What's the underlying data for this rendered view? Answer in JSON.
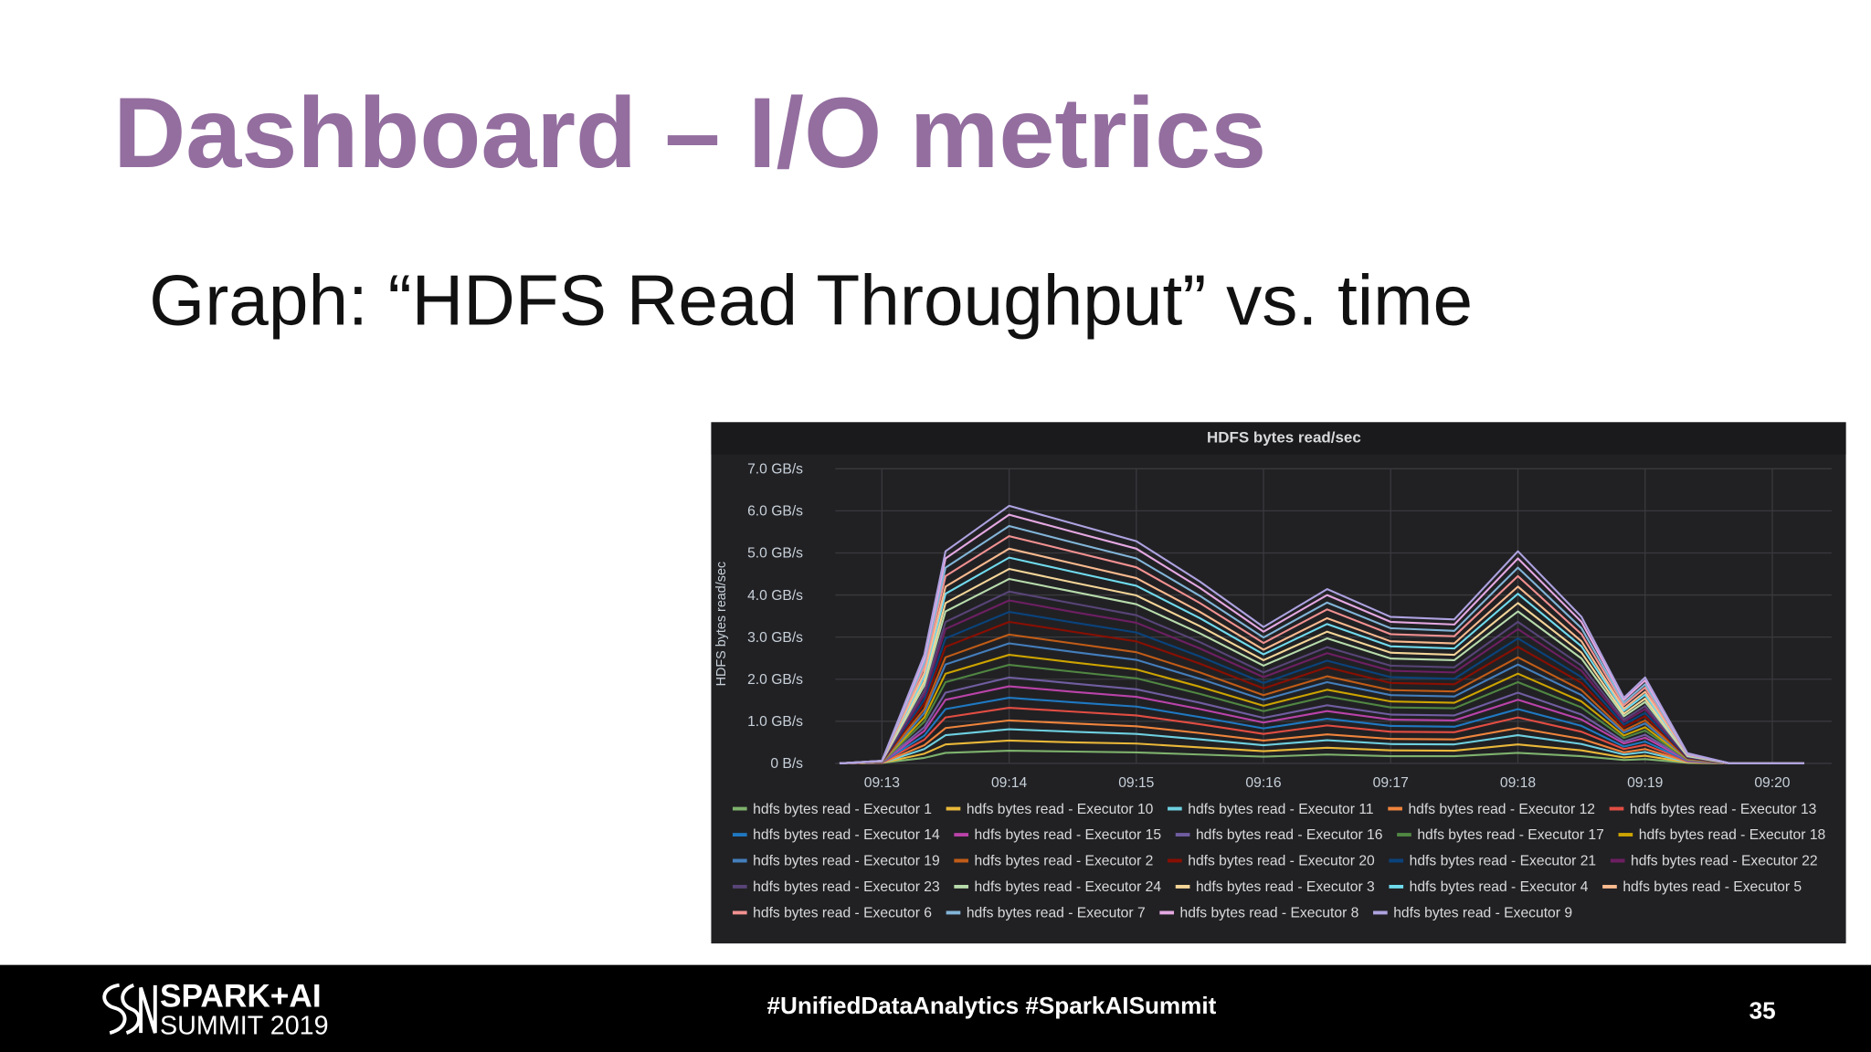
{
  "slide": {
    "title": "Dashboard – I/O metrics",
    "subtitle": "Graph: “HDFS Read Throughput” vs. time",
    "footer": {
      "logo": [
        "SPARK+AI",
        "SUMMIT 2019"
      ],
      "hashtags": "#UnifiedDataAnalytics #SparkAISummit",
      "page_number": 35
    }
  },
  "chart_data": {
    "type": "line",
    "stacked": true,
    "grid": true,
    "title": "HDFS bytes read/sec",
    "ylabel": "HDFS bytes read/sec",
    "x": [
      "09:12:40",
      "09:13:00",
      "09:13:20",
      "09:13:30",
      "09:14:00",
      "09:14:30",
      "09:15:00",
      "09:15:30",
      "09:16:00",
      "09:16:30",
      "09:17:00",
      "09:17:30",
      "09:18:00",
      "09:18:30",
      "09:18:50",
      "09:19:00",
      "09:19:20",
      "09:19:40",
      "09:20:15"
    ],
    "xlim": [
      "09:12:38",
      "09:20:28"
    ],
    "xticks": [
      "09:13",
      "09:14",
      "09:15",
      "09:16",
      "09:17",
      "09:18",
      "09:19",
      "09:20"
    ],
    "ylim": [
      0,
      7
    ],
    "yticks": [
      {
        "value": 0,
        "label": "0 B/s"
      },
      {
        "value": 1,
        "label": "1.0 GB/s"
      },
      {
        "value": 2,
        "label": "2.0 GB/s"
      },
      {
        "value": 3,
        "label": "3.0 GB/s"
      },
      {
        "value": 4,
        "label": "4.0 GB/s"
      },
      {
        "value": 5,
        "label": "5.0 GB/s"
      },
      {
        "value": 6,
        "label": "6.0 GB/s"
      },
      {
        "value": 7,
        "label": "7.0 GB/s"
      }
    ],
    "series": [
      {
        "name": "hdfs bytes read - Executor 1",
        "color": "#7EB26D",
        "values": [
          0,
          0.01,
          0.13,
          0.25,
          0.3,
          0.28,
          0.26,
          0.21,
          0.16,
          0.21,
          0.17,
          0.17,
          0.25,
          0.17,
          0.08,
          0.1,
          0.01,
          0,
          0
        ]
      },
      {
        "name": "hdfs bytes read - Executor 10",
        "color": "#EAB839",
        "values": [
          0,
          0,
          0.1,
          0.2,
          0.24,
          0.22,
          0.21,
          0.17,
          0.13,
          0.16,
          0.14,
          0.13,
          0.2,
          0.14,
          0.06,
          0.08,
          0.01,
          0,
          0
        ]
      },
      {
        "name": "hdfs bytes read - Executor 11",
        "color": "#6ED0E0",
        "values": [
          0,
          0,
          0.11,
          0.22,
          0.27,
          0.25,
          0.23,
          0.19,
          0.14,
          0.18,
          0.15,
          0.15,
          0.22,
          0.15,
          0.07,
          0.09,
          0.01,
          0,
          0
        ]
      },
      {
        "name": "hdfs bytes read - Executor 12",
        "color": "#EF843C",
        "values": [
          0,
          0,
          0.09,
          0.17,
          0.21,
          0.2,
          0.18,
          0.15,
          0.11,
          0.14,
          0.12,
          0.12,
          0.17,
          0.12,
          0.05,
          0.07,
          0.01,
          0,
          0
        ]
      },
      {
        "name": "hdfs bytes read - Executor 13",
        "color": "#E24D42",
        "values": [
          0,
          0.01,
          0.13,
          0.25,
          0.3,
          0.28,
          0.26,
          0.21,
          0.16,
          0.21,
          0.17,
          0.17,
          0.25,
          0.17,
          0.08,
          0.1,
          0.01,
          0,
          0
        ]
      },
      {
        "name": "hdfs bytes read - Executor 14",
        "color": "#1F78C1",
        "values": [
          0,
          0,
          0.1,
          0.2,
          0.24,
          0.22,
          0.21,
          0.17,
          0.13,
          0.16,
          0.14,
          0.13,
          0.2,
          0.14,
          0.06,
          0.08,
          0.01,
          0,
          0
        ]
      },
      {
        "name": "hdfs bytes read - Executor 15",
        "color": "#BA43A9",
        "values": [
          0,
          0,
          0.11,
          0.22,
          0.27,
          0.25,
          0.23,
          0.19,
          0.14,
          0.18,
          0.15,
          0.15,
          0.22,
          0.15,
          0.07,
          0.09,
          0.01,
          0,
          0
        ]
      },
      {
        "name": "hdfs bytes read - Executor 16",
        "color": "#705DA0",
        "values": [
          0,
          0,
          0.09,
          0.17,
          0.21,
          0.2,
          0.18,
          0.15,
          0.11,
          0.14,
          0.12,
          0.12,
          0.17,
          0.12,
          0.05,
          0.07,
          0.01,
          0,
          0
        ]
      },
      {
        "name": "hdfs bytes read - Executor 17",
        "color": "#508642",
        "values": [
          0,
          0.01,
          0.13,
          0.25,
          0.3,
          0.28,
          0.26,
          0.21,
          0.16,
          0.21,
          0.17,
          0.17,
          0.25,
          0.17,
          0.08,
          0.1,
          0.01,
          0,
          0
        ]
      },
      {
        "name": "hdfs bytes read - Executor 18",
        "color": "#CCA300",
        "values": [
          0,
          0,
          0.1,
          0.2,
          0.24,
          0.22,
          0.21,
          0.17,
          0.13,
          0.16,
          0.14,
          0.13,
          0.2,
          0.14,
          0.06,
          0.08,
          0.01,
          0,
          0
        ]
      },
      {
        "name": "hdfs bytes read - Executor 19",
        "color": "#447EBC",
        "values": [
          0,
          0,
          0.11,
          0.22,
          0.27,
          0.25,
          0.23,
          0.19,
          0.14,
          0.18,
          0.15,
          0.15,
          0.22,
          0.15,
          0.07,
          0.09,
          0.01,
          0,
          0
        ]
      },
      {
        "name": "hdfs bytes read - Executor 2",
        "color": "#C15C17",
        "values": [
          0,
          0,
          0.09,
          0.17,
          0.21,
          0.2,
          0.18,
          0.15,
          0.11,
          0.14,
          0.12,
          0.12,
          0.17,
          0.12,
          0.05,
          0.07,
          0.01,
          0,
          0
        ]
      },
      {
        "name": "hdfs bytes read - Executor 20",
        "color": "#890F02",
        "values": [
          0,
          0.01,
          0.13,
          0.25,
          0.3,
          0.28,
          0.26,
          0.21,
          0.16,
          0.21,
          0.17,
          0.17,
          0.25,
          0.17,
          0.08,
          0.1,
          0.01,
          0,
          0
        ]
      },
      {
        "name": "hdfs bytes read - Executor 21",
        "color": "#0A437C",
        "values": [
          0,
          0,
          0.1,
          0.2,
          0.24,
          0.22,
          0.21,
          0.17,
          0.13,
          0.16,
          0.14,
          0.13,
          0.2,
          0.14,
          0.06,
          0.08,
          0.01,
          0,
          0
        ]
      },
      {
        "name": "hdfs bytes read - Executor 22",
        "color": "#6D1F62",
        "values": [
          0,
          0,
          0.11,
          0.22,
          0.27,
          0.25,
          0.23,
          0.19,
          0.14,
          0.18,
          0.15,
          0.15,
          0.22,
          0.15,
          0.07,
          0.09,
          0.01,
          0,
          0
        ]
      },
      {
        "name": "hdfs bytes read - Executor 23",
        "color": "#584477",
        "values": [
          0,
          0,
          0.09,
          0.17,
          0.21,
          0.2,
          0.18,
          0.15,
          0.11,
          0.14,
          0.12,
          0.12,
          0.17,
          0.12,
          0.05,
          0.07,
          0.01,
          0,
          0
        ]
      },
      {
        "name": "hdfs bytes read - Executor 24",
        "color": "#B7DBAB",
        "values": [
          0,
          0.01,
          0.13,
          0.25,
          0.3,
          0.28,
          0.26,
          0.21,
          0.16,
          0.21,
          0.17,
          0.17,
          0.25,
          0.17,
          0.08,
          0.1,
          0.01,
          0,
          0
        ]
      },
      {
        "name": "hdfs bytes read - Executor 3",
        "color": "#F4D598",
        "values": [
          0,
          0,
          0.1,
          0.2,
          0.24,
          0.22,
          0.21,
          0.17,
          0.13,
          0.16,
          0.14,
          0.13,
          0.2,
          0.14,
          0.06,
          0.08,
          0.01,
          0,
          0
        ]
      },
      {
        "name": "hdfs bytes read - Executor 4",
        "color": "#70DBED",
        "values": [
          0,
          0,
          0.11,
          0.22,
          0.27,
          0.25,
          0.23,
          0.19,
          0.14,
          0.18,
          0.15,
          0.15,
          0.22,
          0.15,
          0.07,
          0.09,
          0.01,
          0,
          0
        ]
      },
      {
        "name": "hdfs bytes read - Executor 5",
        "color": "#F9BA8F",
        "values": [
          0,
          0,
          0.09,
          0.17,
          0.21,
          0.2,
          0.18,
          0.15,
          0.11,
          0.14,
          0.12,
          0.12,
          0.17,
          0.12,
          0.05,
          0.07,
          0.01,
          0,
          0
        ]
      },
      {
        "name": "hdfs bytes read - Executor 6",
        "color": "#F29191",
        "values": [
          0,
          0.01,
          0.13,
          0.25,
          0.3,
          0.28,
          0.26,
          0.21,
          0.16,
          0.21,
          0.17,
          0.17,
          0.25,
          0.17,
          0.08,
          0.1,
          0.01,
          0,
          0
        ]
      },
      {
        "name": "hdfs bytes read - Executor 7",
        "color": "#82B5D8",
        "values": [
          0,
          0,
          0.1,
          0.2,
          0.24,
          0.22,
          0.21,
          0.17,
          0.13,
          0.16,
          0.14,
          0.13,
          0.2,
          0.14,
          0.06,
          0.08,
          0.01,
          0,
          0
        ]
      },
      {
        "name": "hdfs bytes read - Executor 8",
        "color": "#E5A8E2",
        "values": [
          0,
          0,
          0.11,
          0.22,
          0.27,
          0.25,
          0.23,
          0.19,
          0.14,
          0.18,
          0.15,
          0.15,
          0.22,
          0.15,
          0.07,
          0.09,
          0.01,
          0,
          0
        ]
      },
      {
        "name": "hdfs bytes read - Executor 9",
        "color": "#AEA2E0",
        "values": [
          0,
          0,
          0.09,
          0.17,
          0.21,
          0.2,
          0.18,
          0.15,
          0.11,
          0.14,
          0.12,
          0.12,
          0.17,
          0.12,
          0.05,
          0.07,
          0.01,
          0,
          0
        ]
      }
    ]
  }
}
